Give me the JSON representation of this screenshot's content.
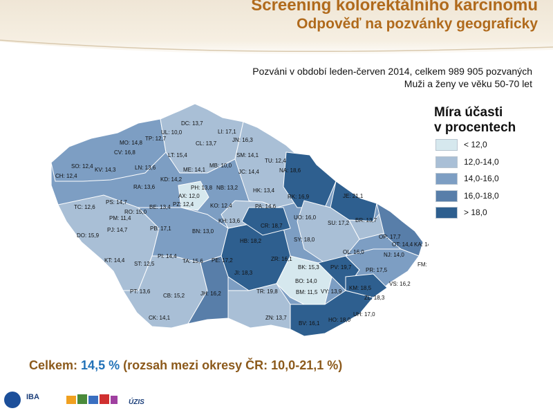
{
  "header": {
    "title": "Screening kolorektálního karcinomu",
    "subtitle": "Odpověď na pozvánky geograficky"
  },
  "info": {
    "line1": "Pozváni v období leden-červen 2014, celkem 989 905 pozvaných",
    "line2": "Muži a ženy ve věku 50-70 let"
  },
  "legend": {
    "title_line1": "Míra účasti",
    "title_line2": "v procentech",
    "items": [
      {
        "label": "< 12,0",
        "color": "#d6e8ee"
      },
      {
        "label": "12,0-14,0",
        "color": "#a9bfd6"
      },
      {
        "label": "14,0-16,0",
        "color": "#7d9ec3"
      },
      {
        "label": "16,0-18,0",
        "color": "#587ea9"
      },
      {
        "label": "> 18,0",
        "color": "#2e5f8f"
      }
    ]
  },
  "districts": [
    {
      "label": "DC: 13,7",
      "value": 13.7
    },
    {
      "label": "UL: 10,0",
      "value": 10.0
    },
    {
      "label": "LI: 17,1",
      "value": 17.1
    },
    {
      "label": "MO: 14,8",
      "value": 14.8
    },
    {
      "label": "TP: 12,7",
      "value": 12.7
    },
    {
      "label": "CL: 13,7",
      "value": 13.7
    },
    {
      "label": "JN: 16,3",
      "value": 16.3
    },
    {
      "label": "CV: 16,8",
      "value": 16.8
    },
    {
      "label": "LT: 15,4",
      "value": 15.4
    },
    {
      "label": "SM: 14,1",
      "value": 14.1
    },
    {
      "label": "TU: 12,4",
      "value": 12.4
    },
    {
      "label": "SO: 12,4",
      "value": 12.4
    },
    {
      "label": "KV: 14,3",
      "value": 14.3
    },
    {
      "label": "LN: 13,6",
      "value": 13.6
    },
    {
      "label": "ME: 14,1",
      "value": 14.1
    },
    {
      "label": "MB: 10,0",
      "value": 10.0
    },
    {
      "label": "JC: 14,4",
      "value": 14.4
    },
    {
      "label": "NA: 18,6",
      "value": 18.6
    },
    {
      "label": "CH: 12,4",
      "value": 12.4
    },
    {
      "label": "KD: 14,2",
      "value": 14.2
    },
    {
      "label": "RA: 13,6",
      "value": 13.6
    },
    {
      "label": "PH: 13,8",
      "value": 13.8
    },
    {
      "label": "NB: 13,2",
      "value": 13.2
    },
    {
      "label": "HK: 13,4",
      "value": 13.4
    },
    {
      "label": "AX: 12,0",
      "value": 12.0
    },
    {
      "label": "RK: 16,9",
      "value": 16.9
    },
    {
      "label": "JE: 21,1",
      "value": 21.1
    },
    {
      "label": "PS: 14,7",
      "value": 14.7
    },
    {
      "label": "BE: 13,4",
      "value": 13.4
    },
    {
      "label": "PZ: 12,4",
      "value": 12.4
    },
    {
      "label": "KO: 12,4",
      "value": 12.4
    },
    {
      "label": "PA: 14,6",
      "value": 14.6
    },
    {
      "label": "TC: 12,6",
      "value": 12.6
    },
    {
      "label": "RO: 15,0",
      "value": 15.0
    },
    {
      "label": "PM: 11,4",
      "value": 11.4
    },
    {
      "label": "KH: 13,6",
      "value": 13.6
    },
    {
      "label": "UO: 16,0",
      "value": 16.0
    },
    {
      "label": "SU: 17,2",
      "value": 17.2
    },
    {
      "label": "BR: 13,7",
      "value": 13.7
    },
    {
      "label": "PJ: 14,7",
      "value": 14.7
    },
    {
      "label": "PB: 17,1",
      "value": 17.1
    },
    {
      "label": "BN: 13,0",
      "value": 13.0
    },
    {
      "label": "CR: 18,7",
      "value": 18.7
    },
    {
      "label": "DO: 15,9",
      "value": 15.9
    },
    {
      "label": "HB: 18,2",
      "value": 18.2
    },
    {
      "label": "SY: 18,0",
      "value": 18.0
    },
    {
      "label": "OP: 17,7",
      "value": 17.7
    },
    {
      "label": "OT: 14,4",
      "value": 14.4
    },
    {
      "label": "KA: 14,8",
      "value": 14.8
    },
    {
      "label": "OL: 16,0",
      "value": 16.0
    },
    {
      "label": "NJ: 14,0",
      "value": 14.0
    },
    {
      "label": "PI: 14,4",
      "value": 14.4
    },
    {
      "label": "KT: 14,4",
      "value": 14.4
    },
    {
      "label": "PE: 17,2",
      "value": 17.2
    },
    {
      "label": "ZR: 16,1",
      "value": 16.1
    },
    {
      "label": "ST: 12,5",
      "value": 12.5
    },
    {
      "label": "TA: 15,6",
      "value": 15.6
    },
    {
      "label": "FM: 14,3",
      "value": 14.3
    },
    {
      "label": "BK: 15,3",
      "value": 15.3
    },
    {
      "label": "PV: 19,7",
      "value": 19.7
    },
    {
      "label": "PR: 17,5",
      "value": 17.5
    },
    {
      "label": "JI: 18,3",
      "value": 18.3
    },
    {
      "label": "BO: 14,0",
      "value": 14.0
    },
    {
      "label": "VS: 16,2",
      "value": 16.2
    },
    {
      "label": "PT: 13,6",
      "value": 13.6
    },
    {
      "label": "TR: 19,8",
      "value": 19.8
    },
    {
      "label": "KM: 18,5",
      "value": 18.5
    },
    {
      "label": "CB: 15,2",
      "value": 15.2
    },
    {
      "label": "JH: 16,2",
      "value": 16.2
    },
    {
      "label": "BM: 11,5",
      "value": 11.5
    },
    {
      "label": "VY: 13,9",
      "value": 13.9
    },
    {
      "label": "ZL: 18,3",
      "value": 18.3
    },
    {
      "label": "UH: 17,0",
      "value": 17.0
    },
    {
      "label": "CK: 14,1",
      "value": 14.1
    },
    {
      "label": "ZN: 13,7",
      "value": 13.7
    },
    {
      "label": "HO: 18,0",
      "value": 18.0
    },
    {
      "label": "BV: 16,1",
      "value": 16.1
    }
  ],
  "summary": {
    "prefix": "Celkem: ",
    "value": "14,5 %",
    "suffix": " (rozsah mezi okresy ČR: 10,0-21,1 %)"
  },
  "footer": {
    "logo_iba": "IBA",
    "logo_uzis": "ÚZIS"
  }
}
